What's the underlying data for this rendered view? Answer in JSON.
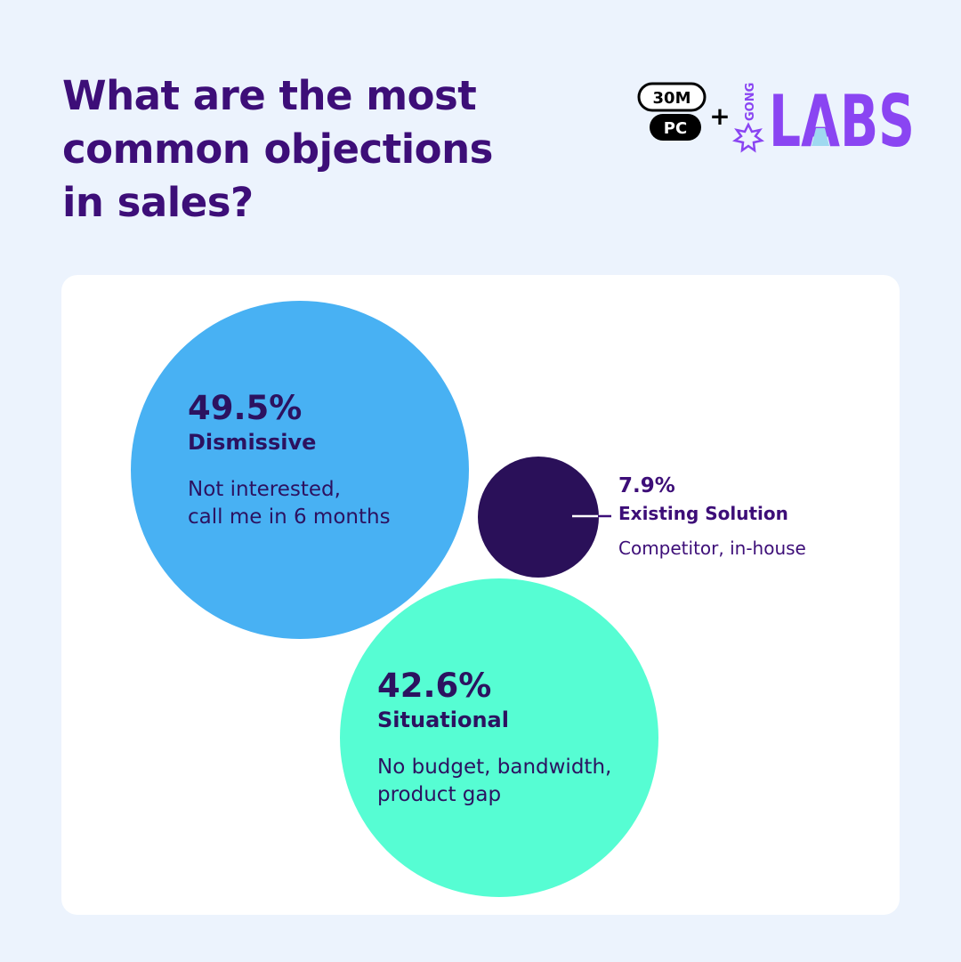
{
  "title_lines": [
    "What are the most",
    "common objections",
    "in sales?"
  ],
  "logo": {
    "badge_top": "30M",
    "badge_bottom": "PC",
    "plus": "+",
    "brand_small": "GONG",
    "brand_large": "LABS"
  },
  "colors": {
    "background": "#ecf3fd",
    "title": "#3d0e78",
    "dismissive": "#48b1f3",
    "situational": "#56fdd3",
    "existing": "#2a1059",
    "labs": "#8a45f2"
  },
  "chart_data": {
    "type": "bubble",
    "title": "What are the most common objections in sales?",
    "series": [
      {
        "name": "Dismissive",
        "value": 49.5,
        "value_label": "49.5%",
        "description": [
          "Not interested,",
          "call me in 6 months"
        ],
        "color": "#48b1f3"
      },
      {
        "name": "Situational",
        "value": 42.6,
        "value_label": "42.6%",
        "description": [
          "No budget, bandwidth,",
          "product gap"
        ],
        "color": "#56fdd3"
      },
      {
        "name": "Existing Solution",
        "value": 7.9,
        "value_label": "7.9%",
        "description": [
          "Competitor, in-house"
        ],
        "color": "#2a1059"
      }
    ]
  }
}
